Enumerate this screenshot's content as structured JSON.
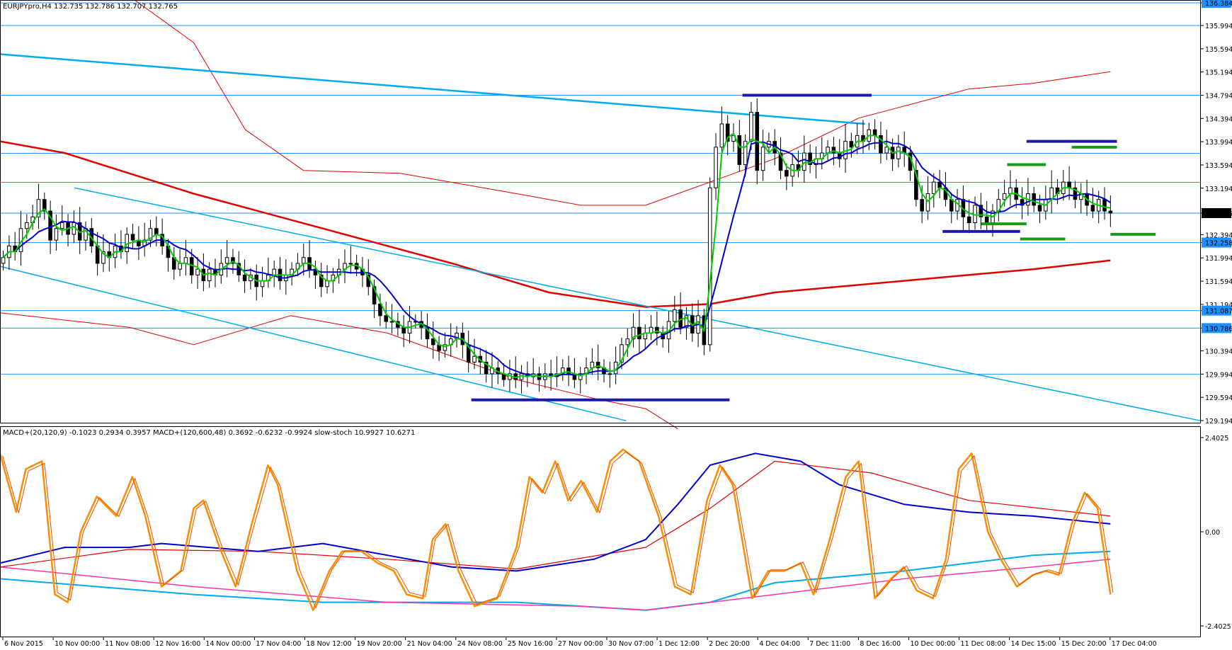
{
  "header": {
    "main_info": "EURJPYpro,H4  132.735 132.786 132.707 132.765",
    "sub_info": "MACD+(20,120,9) -0.1023 0.2934 0.3957  MACD+(120,600,48) 0.3692 -0.6232 -0.9924  slow-stoch 10.9927 10.6271"
  },
  "colors": {
    "level_line": "#1e90ff",
    "channel": "#00aaee",
    "ma_slow": "#e00000",
    "bollinger": "#e00000",
    "ma_fast": "#0000cc",
    "ma_faster": "#00cc00",
    "candle": "#000000",
    "marker_blue": "#1a1aaa",
    "marker_green": "#1a9a1a",
    "stoch": "#ff8c00",
    "macd_fast": "#0000cc",
    "macd_fast_signal": "#e00000",
    "macd_slow": "#00aaee",
    "macd_slow_signal": "#ff33aa",
    "price_tag": "#1e90ff",
    "current_tag": "#000000"
  },
  "price_axis": {
    "ticks": [
      "136.384",
      "135.994",
      "135.594",
      "135.194",
      "134.794",
      "134.394",
      "133.994",
      "133.594",
      "133.194",
      "132.765",
      "132.394",
      "132.258",
      "131.994",
      "131.594",
      "131.194",
      "131.087",
      "130.786",
      "130.394",
      "129.994",
      "129.594",
      "129.194"
    ],
    "tagged": [
      "136.384",
      "132.258",
      "131.087",
      "130.786"
    ],
    "current": "132.765"
  },
  "macd_axis": {
    "ticks": [
      "2.4025",
      "0.00",
      "-2.4025"
    ]
  },
  "time_axis": {
    "labels": [
      "6 Nov 2015",
      "10 Nov 00:00",
      "11 Nov 08:00",
      "12 Nov 16:00",
      "14 Nov 00:00",
      "17 Nov 04:00",
      "18 Nov 12:00",
      "19 Nov 20:00",
      "21 Nov 04:00",
      "24 Nov 08:00",
      "25 Nov 16:00",
      "27 Nov 00:00",
      "30 Nov 07:00",
      "1 Dec 12:00",
      "2 Dec 20:00",
      "4 Dec 04:00",
      "7 Dec 11:00",
      "8 Dec 16:00",
      "10 Dec 00:00",
      "11 Dec 08:00",
      "14 Dec 15:00",
      "15 Dec 20:00",
      "17 Dec 04:00"
    ]
  },
  "chart_data": {
    "type": "candlestick",
    "symbol": "EURJPYpro",
    "timeframe": "H4",
    "last": {
      "open": 132.735,
      "high": 132.786,
      "low": 132.707,
      "close": 132.765
    },
    "ylim": [
      129.194,
      136.384
    ],
    "horizontal_levels": [
      136.384,
      135.994,
      134.794,
      133.794,
      133.294,
      132.765,
      132.258,
      131.087,
      130.786,
      129.994
    ],
    "trendlines": {
      "upper_channel": [
        {
          "t": 0,
          "price": 135.5
        },
        {
          "t": 1.34,
          "price": 134.3
        }
      ],
      "descending_top": [
        {
          "t": 0.115,
          "price": 133.2
        },
        {
          "t": 1.86,
          "price": 129.19
        }
      ],
      "descending_bottom": [
        {
          "t": 0.0,
          "price": 131.85
        },
        {
          "t": 0.97,
          "price": 129.19
        }
      ]
    },
    "markers": {
      "blue": [
        {
          "t0": 0.73,
          "t1": 1.13,
          "price": 129.55
        },
        {
          "t0": 1.15,
          "t1": 1.35,
          "price": 134.794
        },
        {
          "t0": 1.59,
          "t1": 1.73,
          "price": 134.0
        },
        {
          "t0": 1.46,
          "t1": 1.58,
          "price": 132.45
        }
      ],
      "green": [
        {
          "t0": 1.56,
          "t1": 1.62,
          "price": 133.6
        },
        {
          "t0": 1.66,
          "t1": 1.73,
          "price": 133.9
        },
        {
          "t0": 1.52,
          "t1": 1.59,
          "price": 132.58
        },
        {
          "t0": 1.58,
          "t1": 1.65,
          "price": 132.32
        },
        {
          "t0": 1.72,
          "t1": 1.79,
          "price": 132.4
        }
      ]
    },
    "closes": [
      132.0,
      132.2,
      132.1,
      132.5,
      132.6,
      132.7,
      133.0,
      132.8,
      132.3,
      132.5,
      132.6,
      132.4,
      132.6,
      132.3,
      132.5,
      132.2,
      131.9,
      132.1,
      132.0,
      132.2,
      132.1,
      132.4,
      132.3,
      132.2,
      132.3,
      132.5,
      132.4,
      132.2,
      132.0,
      131.8,
      131.9,
      132.0,
      131.7,
      131.8,
      131.6,
      131.8,
      131.7,
      131.9,
      132.0,
      131.9,
      131.7,
      131.6,
      131.7,
      131.5,
      131.6,
      131.7,
      131.8,
      131.6,
      131.7,
      131.8,
      131.9,
      132.0,
      131.8,
      131.7,
      131.5,
      131.6,
      131.7,
      131.8,
      131.9,
      131.9,
      131.8,
      131.7,
      131.5,
      131.2,
      131.0,
      130.9,
      130.9,
      130.8,
      130.7,
      130.9,
      130.9,
      130.8,
      130.6,
      130.5,
      130.4,
      130.5,
      130.6,
      130.7,
      130.5,
      130.2,
      130.3,
      130.2,
      130.0,
      130.1,
      130.0,
      129.9,
      130.0,
      129.9,
      130.0,
      129.95,
      130.0,
      129.9,
      130.0,
      129.95,
      130.0,
      130.1,
      130.0,
      129.9,
      130.0,
      130.1,
      130.2,
      130.1,
      130.0,
      130.0,
      130.2,
      130.5,
      130.6,
      130.8,
      130.6,
      130.7,
      130.8,
      130.7,
      130.6,
      130.9,
      131.1,
      130.8,
      131.0,
      130.7,
      131.0,
      130.5,
      133.2,
      133.9,
      134.3,
      134.0,
      134.1,
      133.6,
      134.0,
      134.5,
      133.5,
      133.9,
      134.0,
      133.8,
      133.5,
      133.4,
      133.6,
      133.5,
      133.8,
      133.6,
      133.7,
      133.8,
      133.9,
      133.8,
      133.7,
      134.0,
      133.9,
      134.1,
      134.0,
      134.2,
      134.1,
      133.8,
      133.9,
      133.7,
      133.9,
      133.8,
      133.5,
      133.0,
      132.8,
      133.1,
      133.3,
      133.2,
      133.0,
      132.8,
      133.0,
      132.7,
      132.6,
      132.9,
      132.7,
      132.6,
      132.8,
      133.0,
      133.1,
      133.2,
      133.0,
      132.9,
      133.1,
      132.9,
      132.8,
      133.0,
      133.2,
      133.1,
      133.3,
      133.2,
      133.0,
      133.1,
      132.9,
      132.8,
      133.0,
      132.8,
      132.765
    ],
    "ma_slow": [
      [
        0,
        134.0
      ],
      [
        0.1,
        133.8
      ],
      [
        0.3,
        133.1
      ],
      [
        0.5,
        132.5
      ],
      [
        0.7,
        131.9
      ],
      [
        0.85,
        131.4
      ],
      [
        1.0,
        131.15
      ],
      [
        1.1,
        131.2
      ],
      [
        1.2,
        131.4
      ],
      [
        1.4,
        131.6
      ],
      [
        1.6,
        131.8
      ],
      [
        1.72,
        131.95
      ]
    ],
    "bollinger_upper": [
      [
        0.05,
        137.0
      ],
      [
        0.2,
        136.5
      ],
      [
        0.3,
        135.7
      ],
      [
        0.38,
        134.2
      ],
      [
        0.47,
        133.5
      ],
      [
        0.62,
        133.45
      ],
      [
        0.8,
        133.1
      ],
      [
        0.9,
        132.9
      ],
      [
        1.0,
        132.9
      ],
      [
        1.2,
        133.7
      ],
      [
        1.33,
        134.4
      ],
      [
        1.5,
        134.9
      ],
      [
        1.6,
        135.0
      ],
      [
        1.72,
        135.2
      ]
    ],
    "bollinger_lower": [
      [
        0.0,
        131.05
      ],
      [
        0.2,
        130.8
      ],
      [
        0.3,
        130.5
      ],
      [
        0.45,
        131.0
      ],
      [
        0.6,
        130.7
      ],
      [
        0.8,
        129.9
      ],
      [
        0.93,
        129.55
      ],
      [
        1.0,
        129.4
      ],
      [
        1.05,
        129.05
      ]
    ],
    "macd_fast": [
      [
        0,
        -0.8
      ],
      [
        0.05,
        -0.6
      ],
      [
        0.1,
        -0.4
      ],
      [
        0.2,
        -0.4
      ],
      [
        0.25,
        -0.3
      ],
      [
        0.4,
        -0.5
      ],
      [
        0.5,
        -0.3
      ],
      [
        0.6,
        -0.6
      ],
      [
        0.7,
        -0.9
      ],
      [
        0.8,
        -1.0
      ],
      [
        0.92,
        -0.7
      ],
      [
        1.0,
        -0.2
      ],
      [
        1.05,
        0.7
      ],
      [
        1.1,
        1.7
      ],
      [
        1.17,
        2.0
      ],
      [
        1.24,
        1.8
      ],
      [
        1.3,
        1.2
      ],
      [
        1.4,
        0.7
      ],
      [
        1.5,
        0.5
      ],
      [
        1.6,
        0.4
      ],
      [
        1.72,
        0.2
      ]
    ],
    "macd_fast_signal": [
      [
        0,
        -0.9
      ],
      [
        0.2,
        -0.45
      ],
      [
        0.4,
        -0.5
      ],
      [
        0.6,
        -0.7
      ],
      [
        0.8,
        -0.95
      ],
      [
        1.0,
        -0.4
      ],
      [
        1.1,
        0.6
      ],
      [
        1.2,
        1.8
      ],
      [
        1.35,
        1.5
      ],
      [
        1.5,
        0.8
      ],
      [
        1.72,
        0.4
      ]
    ],
    "macd_slow": [
      [
        0,
        -1.2
      ],
      [
        0.3,
        -1.6
      ],
      [
        0.5,
        -1.8
      ],
      [
        0.8,
        -1.8
      ],
      [
        1.0,
        -2.0
      ],
      [
        1.1,
        -1.8
      ],
      [
        1.2,
        -1.3
      ],
      [
        1.4,
        -1.0
      ],
      [
        1.6,
        -0.6
      ],
      [
        1.72,
        -0.5
      ]
    ],
    "macd_slow_signal": [
      [
        0,
        -0.9
      ],
      [
        0.3,
        -1.4
      ],
      [
        0.6,
        -1.8
      ],
      [
        0.9,
        -1.9
      ],
      [
        1.0,
        -2.0
      ],
      [
        1.2,
        -1.6
      ],
      [
        1.4,
        -1.2
      ],
      [
        1.6,
        -0.9
      ],
      [
        1.72,
        -0.7
      ]
    ],
    "stoch": [
      [
        0,
        2.0
      ],
      [
        0.025,
        0.5
      ],
      [
        0.04,
        1.6
      ],
      [
        0.065,
        1.8
      ],
      [
        0.085,
        -1.6
      ],
      [
        0.105,
        -1.8
      ],
      [
        0.125,
        0.0
      ],
      [
        0.15,
        0.9
      ],
      [
        0.18,
        0.4
      ],
      [
        0.205,
        1.4
      ],
      [
        0.225,
        0.4
      ],
      [
        0.25,
        -1.4
      ],
      [
        0.28,
        -1.0
      ],
      [
        0.3,
        0.6
      ],
      [
        0.315,
        0.8
      ],
      [
        0.34,
        -0.4
      ],
      [
        0.365,
        -1.4
      ],
      [
        0.39,
        0.2
      ],
      [
        0.415,
        1.7
      ],
      [
        0.43,
        1.2
      ],
      [
        0.46,
        -1.0
      ],
      [
        0.485,
        -2.0
      ],
      [
        0.51,
        -1.0
      ],
      [
        0.53,
        -0.5
      ],
      [
        0.56,
        -0.5
      ],
      [
        0.585,
        -0.8
      ],
      [
        0.61,
        -1.0
      ],
      [
        0.63,
        -1.6
      ],
      [
        0.655,
        -1.7
      ],
      [
        0.67,
        -0.2
      ],
      [
        0.69,
        0.2
      ],
      [
        0.71,
        -1.0
      ],
      [
        0.735,
        -1.9
      ],
      [
        0.77,
        -1.7
      ],
      [
        0.8,
        -0.4
      ],
      [
        0.82,
        1.4
      ],
      [
        0.84,
        1.0
      ],
      [
        0.86,
        1.8
      ],
      [
        0.88,
        0.8
      ],
      [
        0.9,
        1.3
      ],
      [
        0.925,
        0.5
      ],
      [
        0.945,
        1.8
      ],
      [
        0.965,
        2.1
      ],
      [
        0.99,
        1.8
      ],
      [
        1.02,
        0.4
      ],
      [
        1.045,
        -1.4
      ],
      [
        1.07,
        -1.6
      ],
      [
        1.095,
        0.8
      ],
      [
        1.115,
        1.7
      ],
      [
        1.135,
        1.2
      ],
      [
        1.165,
        -1.7
      ],
      [
        1.19,
        -1.0
      ],
      [
        1.215,
        -1.0
      ],
      [
        1.24,
        -0.8
      ],
      [
        1.26,
        -1.6
      ],
      [
        1.285,
        -0.2
      ],
      [
        1.31,
        1.4
      ],
      [
        1.33,
        1.8
      ],
      [
        1.355,
        -1.7
      ],
      [
        1.38,
        -1.2
      ],
      [
        1.4,
        -0.9
      ],
      [
        1.42,
        -1.5
      ],
      [
        1.445,
        -1.7
      ],
      [
        1.465,
        -0.7
      ],
      [
        1.485,
        1.6
      ],
      [
        1.505,
        2.0
      ],
      [
        1.53,
        0.0
      ],
      [
        1.55,
        -0.7
      ],
      [
        1.575,
        -1.4
      ],
      [
        1.6,
        -1.1
      ],
      [
        1.62,
        -1.0
      ],
      [
        1.64,
        -1.1
      ],
      [
        1.66,
        0.2
      ],
      [
        1.68,
        1.0
      ],
      [
        1.7,
        0.6
      ],
      [
        1.72,
        -1.6
      ]
    ]
  }
}
